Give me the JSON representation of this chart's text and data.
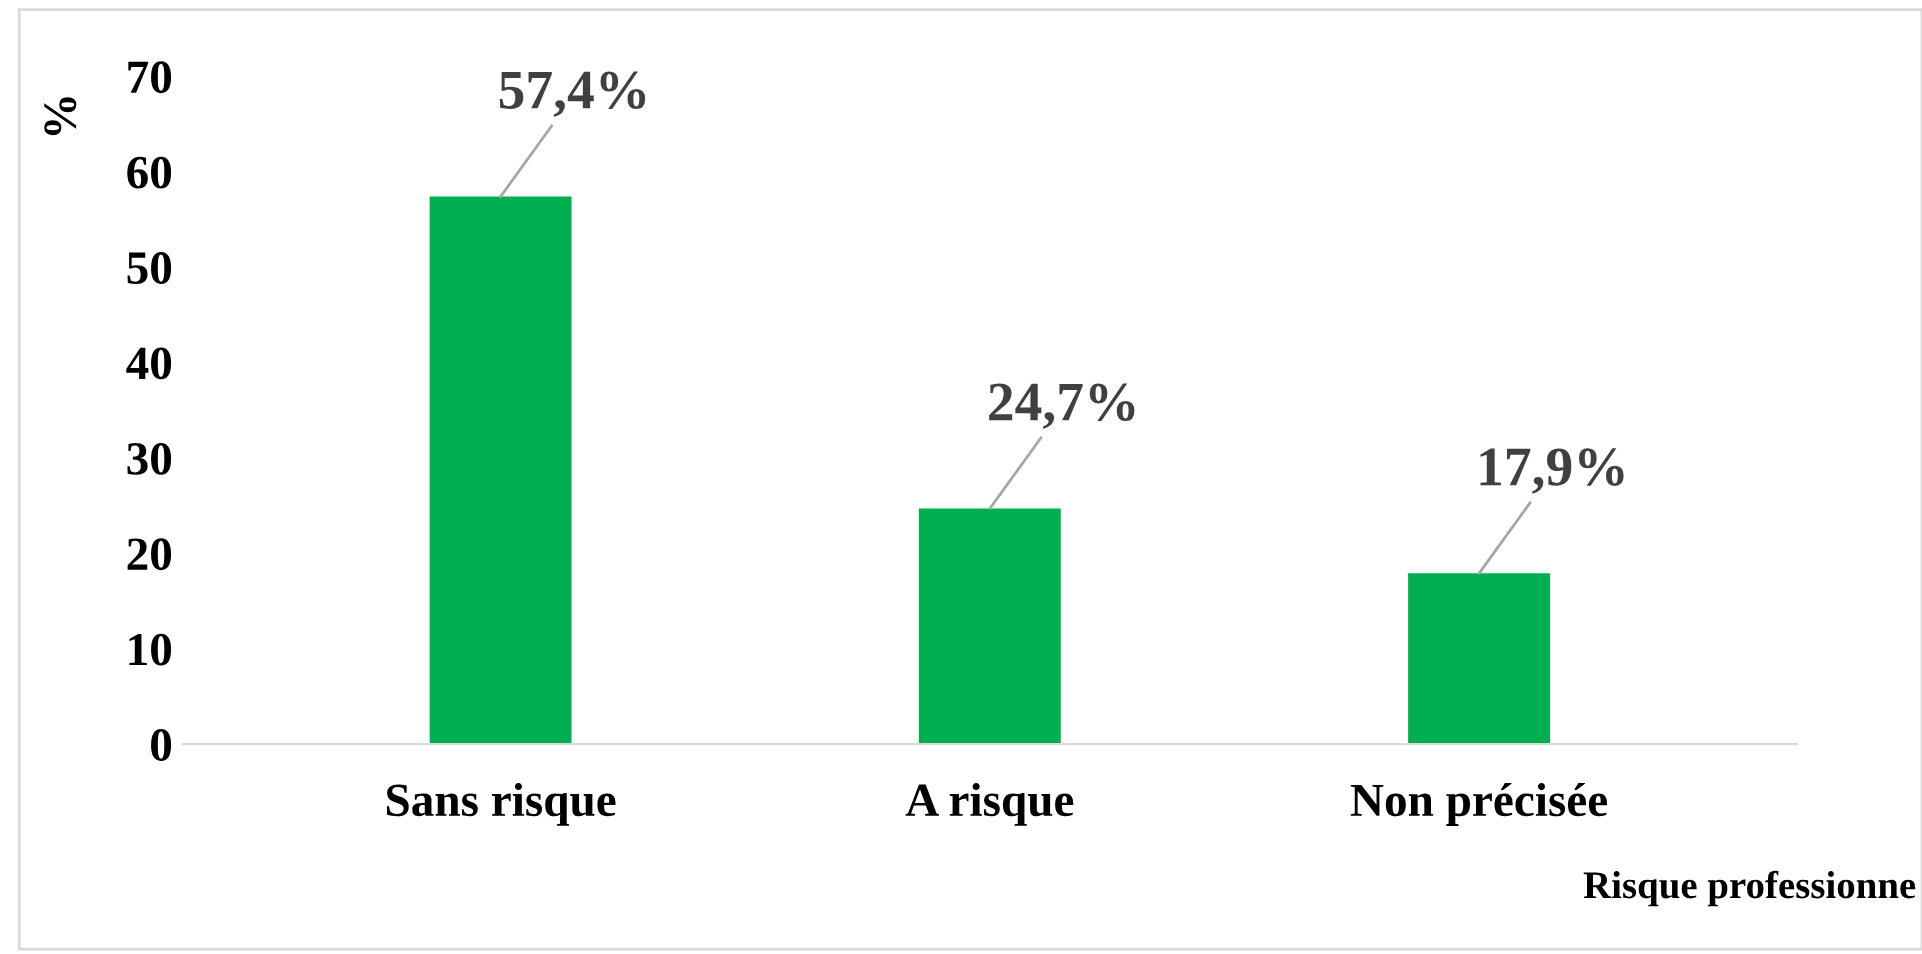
{
  "chart_data": {
    "type": "bar",
    "ylabel": "%",
    "xlabel": "Risque professionne",
    "categories": [
      "Sans risque",
      "A risque",
      "Non précisée"
    ],
    "values": [
      57.4,
      24.7,
      17.9
    ],
    "color": "#00b050",
    "value_labels": [
      "57,4%",
      "24,7%",
      "17,9%"
    ],
    "ylim": [
      0,
      70
    ],
    "yticks": [
      0,
      10,
      20,
      30,
      40,
      50,
      60,
      70
    ],
    "grid": false
  }
}
